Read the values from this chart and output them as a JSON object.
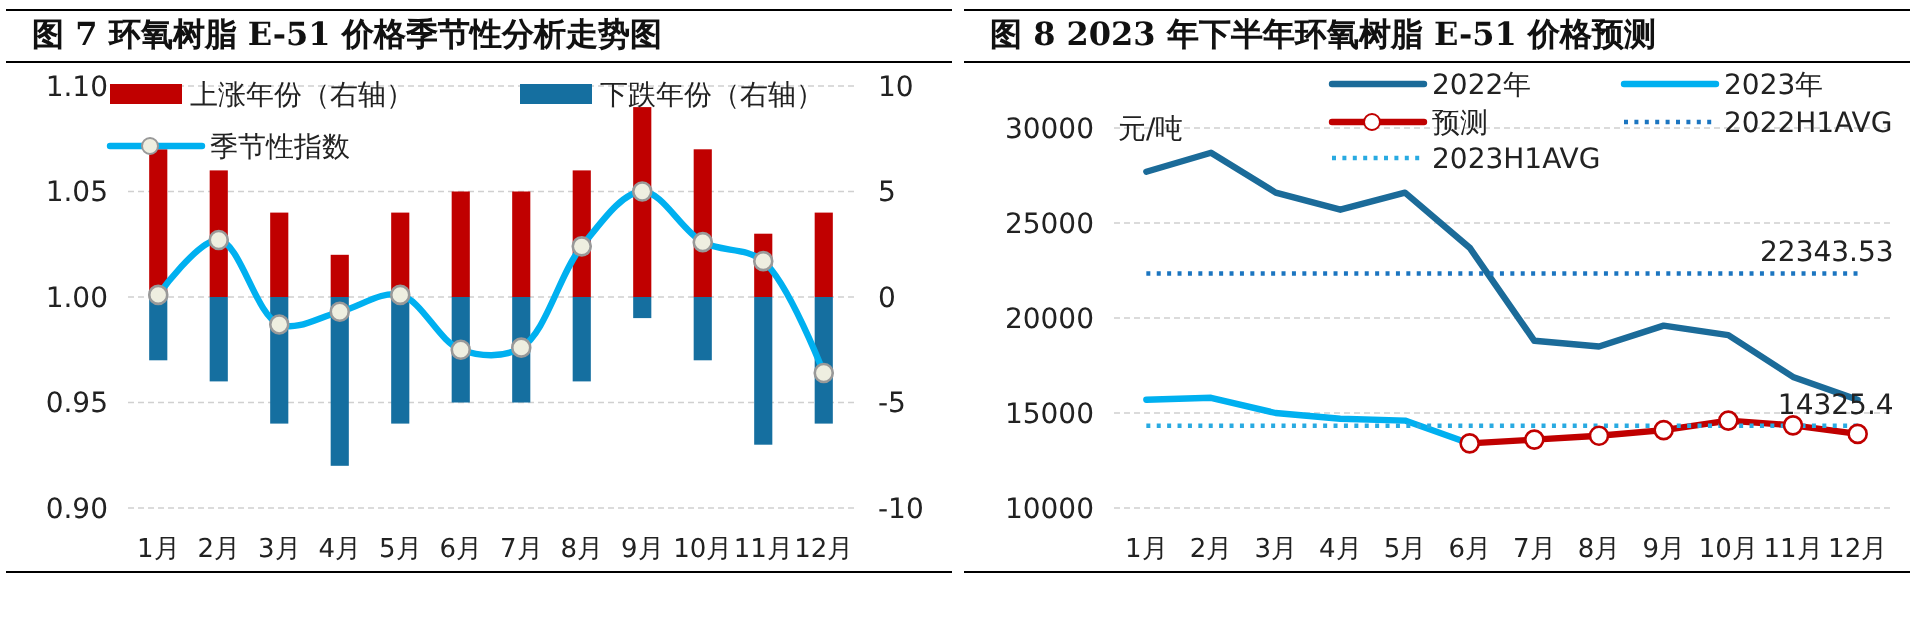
{
  "chart_data": [
    {
      "type": "bar",
      "title": "图 7  环氧树脂 E-51 价格季节性分析走势图",
      "categories": [
        "1月",
        "2月",
        "3月",
        "4月",
        "5月",
        "6月",
        "7月",
        "8月",
        "9月",
        "10月",
        "11月",
        "12月"
      ],
      "stacked": true,
      "series": [
        {
          "name": "上涨年份（右轴）",
          "color": "#c00000",
          "axis": "y2",
          "values": [
            7,
            6,
            4,
            2,
            4,
            5,
            5,
            6,
            9,
            7,
            3,
            4
          ]
        },
        {
          "name": "下跌年份（右轴）",
          "color": "#156fa0",
          "axis": "y2",
          "values": [
            -3,
            -4,
            -6,
            -8,
            -6,
            -5,
            -5,
            -4,
            -1,
            -3,
            -7,
            -6
          ]
        },
        {
          "name": "季节性指数",
          "type": "line",
          "color": "#00b0f0",
          "marker": "circle",
          "values": [
            1.001,
            1.027,
            0.987,
            0.993,
            1.001,
            0.975,
            0.976,
            1.024,
            1.05,
            1.026,
            1.017,
            0.964
          ]
        }
      ],
      "ylim": [
        0.9,
        1.1
      ],
      "yticks": [
        {
          "value": 0.9,
          "label": "0.90"
        },
        0.95,
        {
          "value": 1.0,
          "label": "1.00"
        },
        1.05,
        {
          "value": 1.1,
          "label": "1.10"
        }
      ],
      "y2lim": [
        -10,
        10
      ],
      "y2ticks": [
        -10,
        -5,
        0,
        5,
        10
      ],
      "grid": "y",
      "legend": "top"
    },
    {
      "type": "line",
      "title": "图 8  2023 年下半年环氧树脂 E-51 价格预测",
      "ylabel": "元/吨",
      "categories": [
        "1月",
        "2月",
        "3月",
        "4月",
        "5月",
        "6月",
        "7月",
        "8月",
        "9月",
        "10月",
        "11月",
        "12月"
      ],
      "series": [
        {
          "name": "2022年",
          "color": "#1b6b99",
          "values": [
            27700,
            28700,
            26600,
            25700,
            26600,
            23700,
            18800,
            18500,
            19600,
            19100,
            16900,
            15700
          ]
        },
        {
          "name": "2023年",
          "color": "#00b0f0",
          "values": [
            15700,
            15800,
            15000,
            14700,
            14600,
            13400,
            null,
            null,
            null,
            null,
            null,
            null
          ]
        },
        {
          "name": "预测",
          "color": "#c00000",
          "marker": "circle",
          "values": [
            null,
            null,
            null,
            null,
            null,
            13400,
            13600,
            13800,
            14100,
            14600,
            14350,
            13900
          ]
        },
        {
          "name": "2022H1AVG",
          "color": "#1b75c0",
          "line_style": "dotted",
          "values": [
            22343.53,
            22343.53,
            22343.53,
            22343.53,
            22343.53,
            22343.53,
            22343.53,
            22343.53,
            22343.53,
            22343.53,
            22343.53,
            22343.53
          ],
          "value_labels": [
            null,
            null,
            null,
            null,
            null,
            null,
            null,
            null,
            null,
            null,
            null,
            "22343.53"
          ]
        },
        {
          "name": "2023H1AVG",
          "color": "#29aae1",
          "line_style": "dotted",
          "values": [
            14325.4,
            14325.4,
            14325.4,
            14325.4,
            14325.4,
            14325.4,
            14325.4,
            14325.4,
            14325.4,
            14325.4,
            14325.4,
            14325.4
          ],
          "value_labels": [
            null,
            null,
            null,
            null,
            null,
            null,
            null,
            null,
            null,
            null,
            null,
            "14325.4"
          ]
        }
      ],
      "ylim": [
        10000,
        30000
      ],
      "yticks": [
        10000,
        15000,
        20000,
        25000,
        30000
      ],
      "grid": "y",
      "legend": "top"
    }
  ]
}
